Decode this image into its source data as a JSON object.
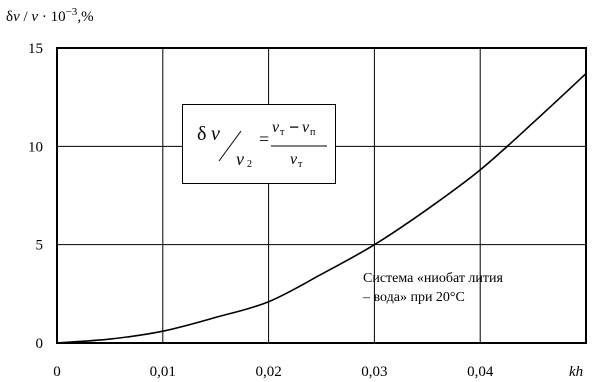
{
  "chart_data": {
    "type": "line",
    "title": "",
    "xlabel": "kh",
    "ylabel": {
      "prefix": "δ",
      "v1": "v",
      "slash": " / ",
      "v2": "v",
      "mult": " · 10",
      "exp": "−3",
      "unit": ",%"
    },
    "xlim": [
      0,
      0.05
    ],
    "ylim": [
      0,
      15
    ],
    "xticks": [
      0,
      0.01,
      0.02,
      0.03,
      0.04
    ],
    "xtick_labels": [
      "0",
      "0,01",
      "0,02",
      "0,03",
      "0,04"
    ],
    "yticks": [
      0,
      5,
      10,
      15
    ],
    "ytick_labels": [
      "0",
      "5",
      "10",
      "15"
    ],
    "grid": true,
    "series": [
      {
        "x": [
          0,
          0.005,
          0.01,
          0.015,
          0.02,
          0.025,
          0.03,
          0.035,
          0.04,
          0.045,
          0.05
        ],
        "y": [
          0,
          0.2,
          0.6,
          1.3,
          2.1,
          3.5,
          5.0,
          6.8,
          8.8,
          11.2,
          13.7
        ]
      }
    ],
    "formula": {
      "lhs_delta": "δ",
      "lhs_v": "v",
      "lhs_slash": "⁄",
      "lhs_v2": "v",
      "lhs_v2_sub": "2",
      "eq": "=",
      "num_v1": "v",
      "num_v1_sub": "т",
      "num_minus": "−",
      "num_v2": "v",
      "num_v2_sub": "п",
      "den_v": "v",
      "den_sub": "т"
    },
    "annotation": {
      "line1": "Система «ниобат лития",
      "line2": "– вода» при 20°С"
    }
  }
}
